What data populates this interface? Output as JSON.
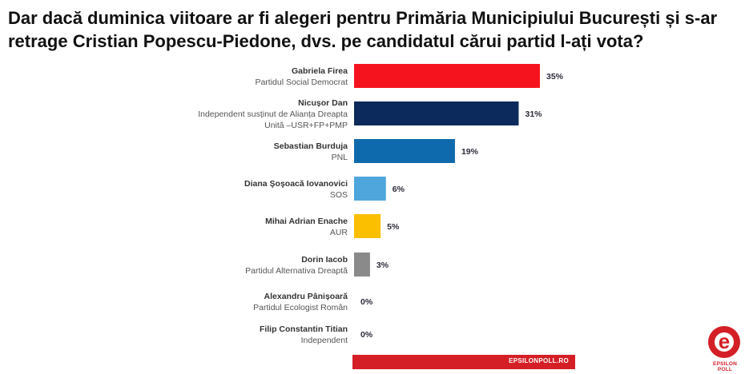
{
  "header": {
    "title": "Dar dacă duminica viitoare ar fi alegeri pentru Primăria Municipiului București și s-ar retrage Cristian Popescu-Piedone, dvs. pe candidatul cărui partid l-ați vota?"
  },
  "chart_data": {
    "type": "bar",
    "orientation": "horizontal",
    "xlim": [
      0,
      35
    ],
    "grid": false,
    "legend": "none",
    "categories": [
      {
        "name": "Gabriela Firea",
        "party": [
          "Partidul Social Democrat"
        ]
      },
      {
        "name": "Nicușor Dan",
        "party": [
          "Independent susținut de Alianța Dreapta",
          "Unită –USR+FP+PMP"
        ]
      },
      {
        "name": "Sebastian Burduja",
        "party": [
          "PNL"
        ]
      },
      {
        "name": "Diana Şoşoacă Iovanovici",
        "party": [
          "SOS"
        ]
      },
      {
        "name": "Mihai Adrian Enache",
        "party": [
          "AUR"
        ]
      },
      {
        "name": "Dorin Iacob",
        "party": [
          "Partidul Alternativa Dreaptă"
        ]
      },
      {
        "name": "Alexandru Pânișoară",
        "party": [
          "Partidul Ecologist Român"
        ]
      },
      {
        "name": "Filip Constantin Titian",
        "party": [
          "Independent"
        ]
      }
    ],
    "values": [
      35,
      31,
      19,
      6,
      5,
      3,
      0,
      0
    ],
    "value_labels": [
      "35%",
      "31%",
      "19%",
      "6%",
      "5%",
      "3%",
      "0%",
      "0%"
    ],
    "colors": [
      "#f5141e",
      "#0d2a5c",
      "#0f6aad",
      "#4fa6dc",
      "#fbbf00",
      "#8a8a8a",
      "#cccccc",
      "#cccccc"
    ]
  },
  "footer": {
    "site": "EPSILONPOLL.RO",
    "logo_letter": "e",
    "logo_text": "EPSILON POLL"
  },
  "colors": {
    "accent": "#d41f26"
  }
}
